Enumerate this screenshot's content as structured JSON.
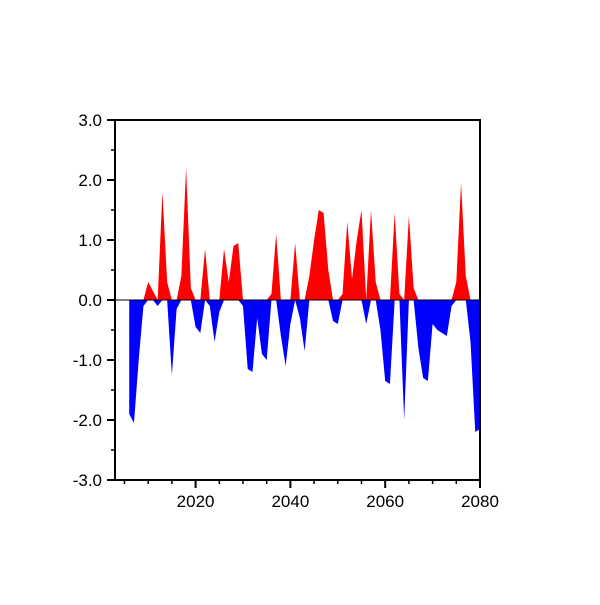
{
  "chart_data": {
    "type": "area",
    "title": "",
    "xlabel": "",
    "ylabel": "",
    "description": "Annual anomaly time series with positive values filled red and negative values filled blue",
    "xlim": [
      2003,
      2080
    ],
    "ylim": [
      -3.0,
      3.0
    ],
    "x_ticks": [
      2020,
      2040,
      2060,
      2080
    ],
    "x_tick_labels": [
      "2020",
      "2040",
      "2060",
      "2080"
    ],
    "x_minor_step": 5,
    "y_ticks": [
      3.0,
      2.0,
      1.0,
      0.0,
      -1.0,
      -2.0,
      -3.0
    ],
    "y_tick_labels": [
      "3.0",
      "2.0",
      "1.0",
      "0.0",
      "-1.0",
      "-2.0",
      "-3.0"
    ],
    "y_minor_step": 0.5,
    "grid": false,
    "legend": null,
    "positive_color": "#ff0000",
    "negative_color": "#0000ff",
    "axis_color": "#000000",
    "background_color": "#ffffff",
    "years": [
      2006,
      2007,
      2008,
      2009,
      2010,
      2011,
      2012,
      2013,
      2014,
      2015,
      2016,
      2017,
      2018,
      2019,
      2020,
      2021,
      2022,
      2023,
      2024,
      2025,
      2026,
      2027,
      2028,
      2029,
      2030,
      2031,
      2032,
      2033,
      2034,
      2035,
      2036,
      2037,
      2038,
      2039,
      2040,
      2041,
      2042,
      2043,
      2044,
      2045,
      2046,
      2047,
      2048,
      2049,
      2050,
      2051,
      2052,
      2053,
      2054,
      2055,
      2056,
      2057,
      2058,
      2059,
      2060,
      2061,
      2062,
      2063,
      2064,
      2065,
      2066,
      2067,
      2068,
      2069,
      2070,
      2071,
      2072,
      2073,
      2074,
      2075,
      2076,
      2077,
      2078,
      2079,
      2080
    ],
    "values": [
      -1.9,
      -2.05,
      -1.0,
      -0.1,
      0.3,
      0.15,
      -0.1,
      1.8,
      0.3,
      -1.25,
      -0.15,
      0.4,
      2.2,
      0.2,
      -0.45,
      -0.55,
      0.85,
      -0.1,
      -0.7,
      -0.2,
      0.85,
      0.3,
      0.9,
      0.95,
      -0.1,
      -1.15,
      -1.2,
      -0.3,
      -0.9,
      -1.0,
      0.1,
      1.1,
      -0.6,
      -1.1,
      -0.4,
      0.95,
      -0.3,
      -0.85,
      0.4,
      1.0,
      1.5,
      1.45,
      0.5,
      -0.35,
      -0.4,
      0.1,
      1.3,
      0.35,
      1.0,
      1.5,
      -0.4,
      1.5,
      0.3,
      -0.5,
      -1.35,
      -1.4,
      1.45,
      0.1,
      -2.0,
      1.4,
      0.2,
      -0.8,
      -1.3,
      -1.35,
      -0.4,
      -0.5,
      -0.55,
      -0.6,
      -0.1,
      0.3,
      1.95,
      0.4,
      -0.7,
      -2.2,
      -2.15
    ]
  }
}
